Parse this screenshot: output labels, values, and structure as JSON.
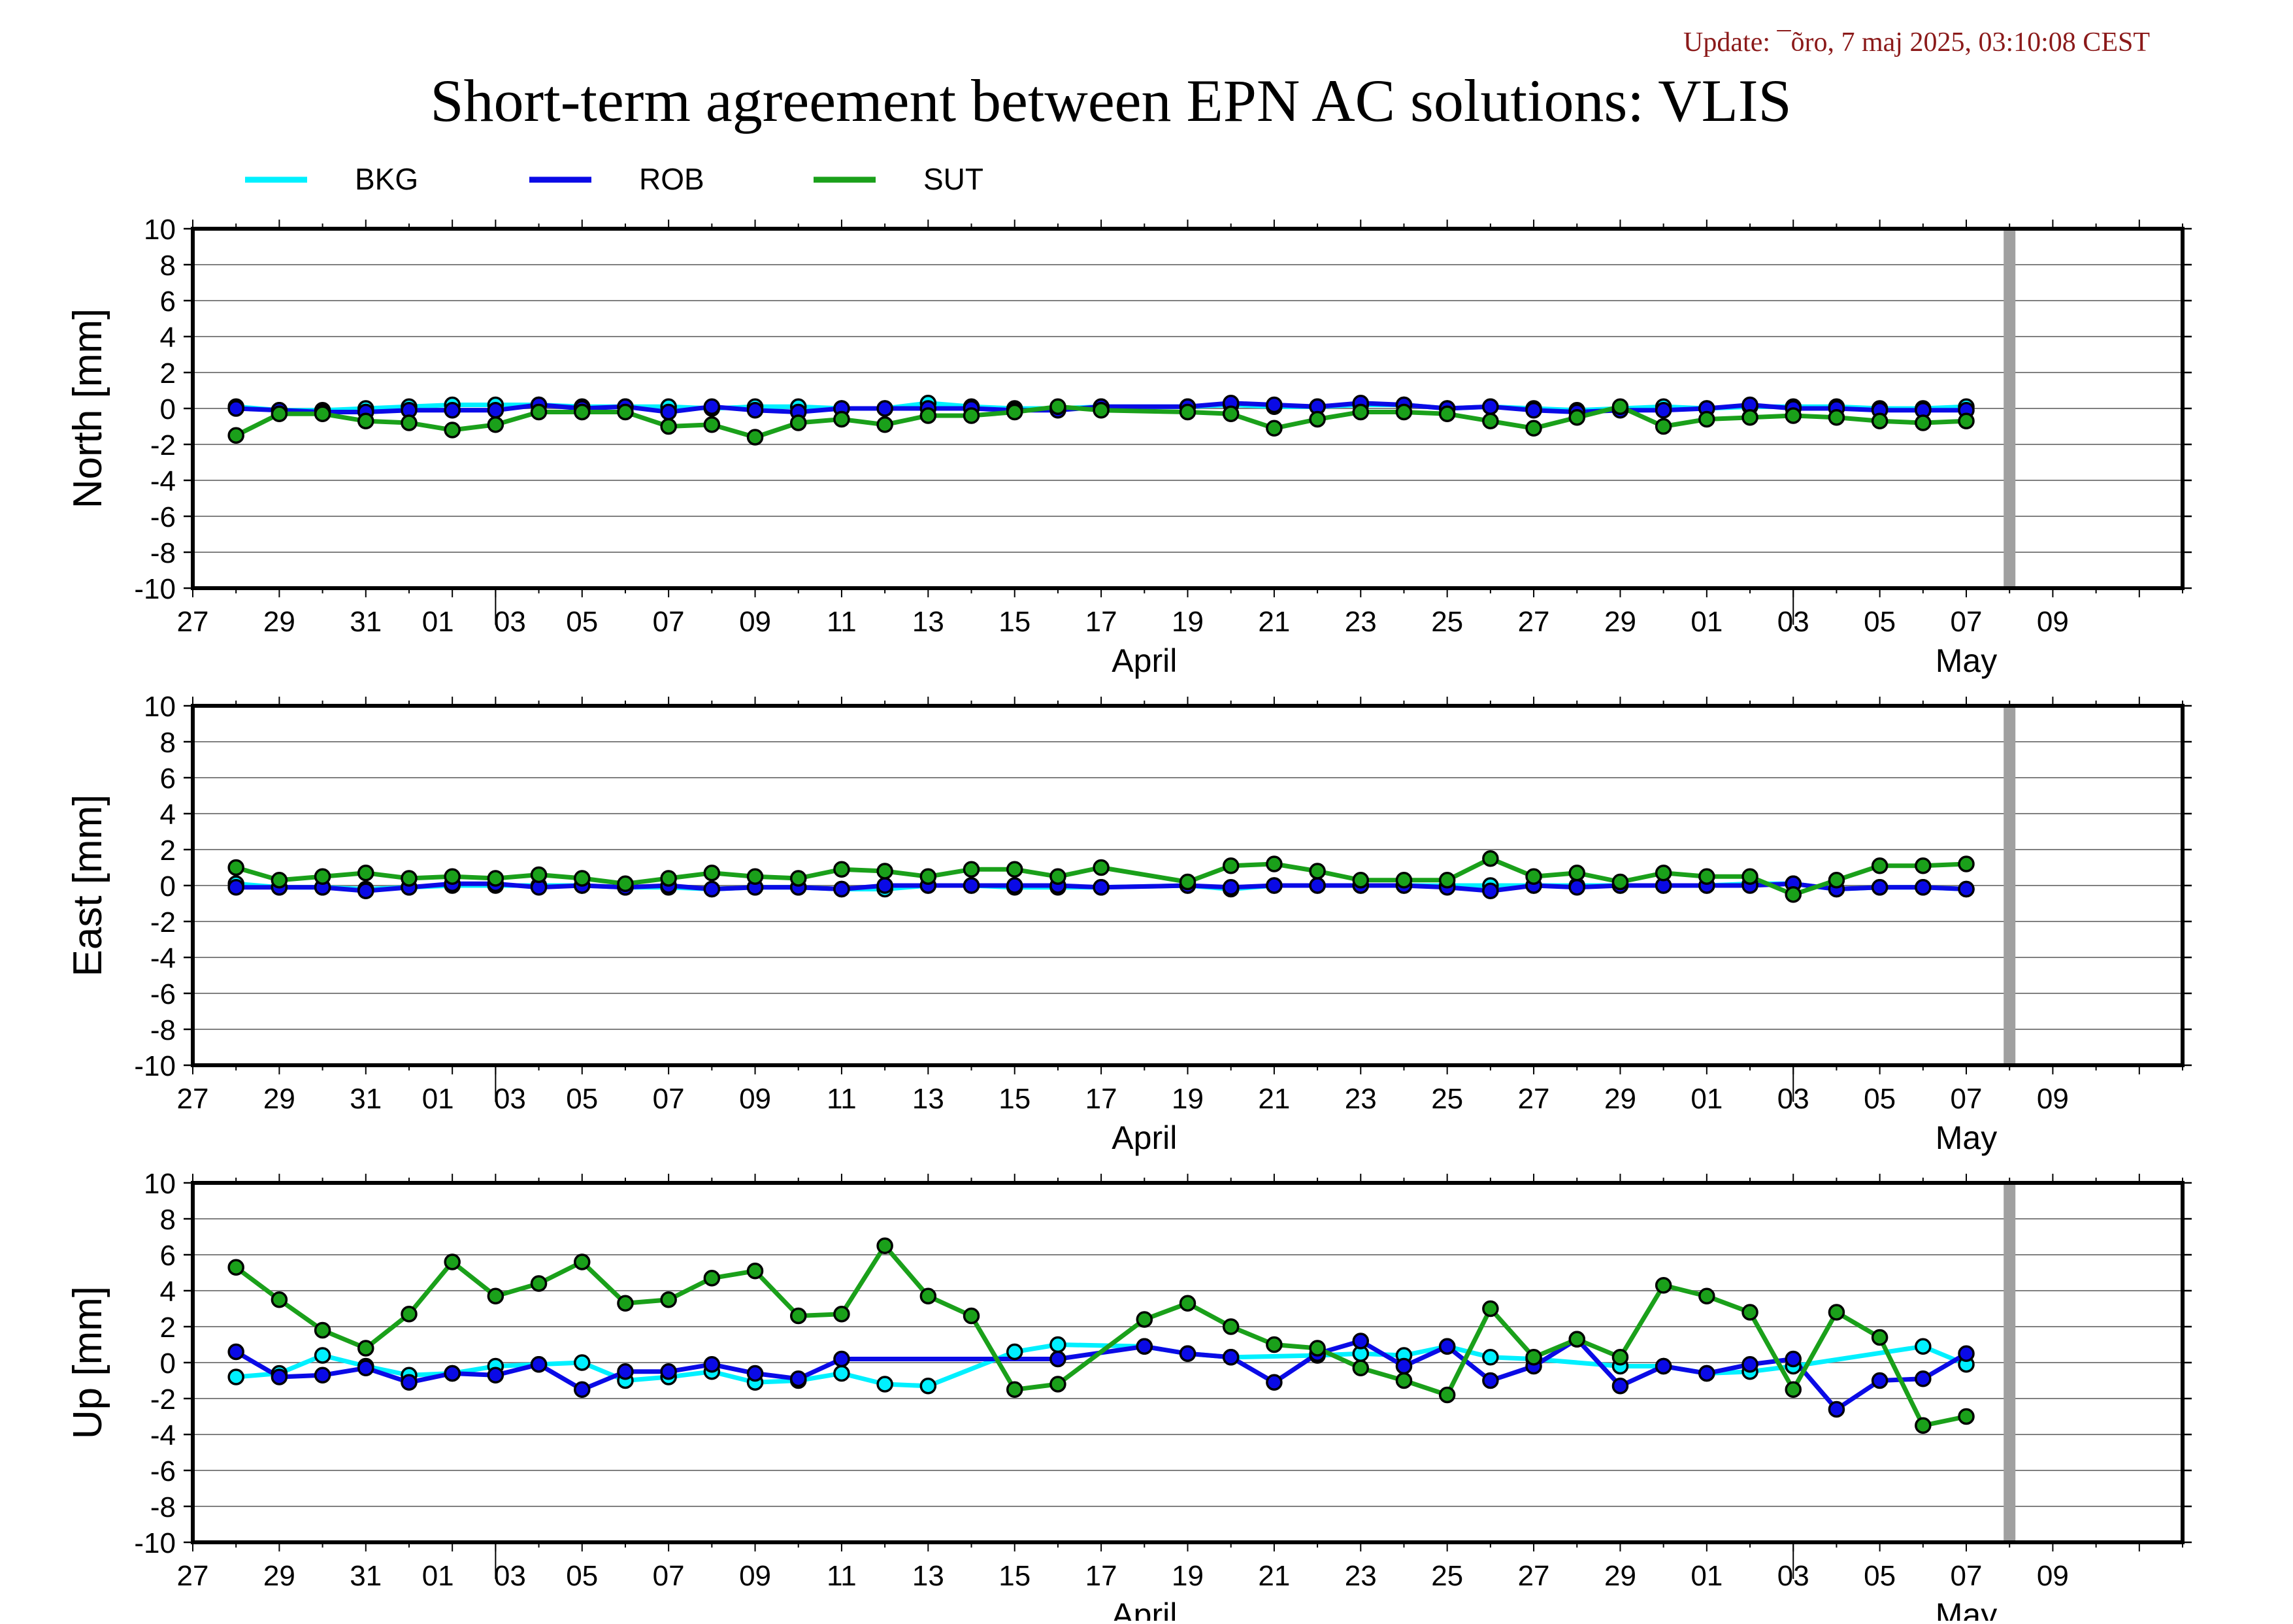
{
  "update_text": "Update: ¯õro, 7 maj 2025, 03:10:08 CEST",
  "title": "Short-term agreement between EPN AC solutions: VLIS",
  "colors": {
    "update": "#8b1a1a",
    "grid": "#808080",
    "today_marker": "#a0a0a0",
    "marker_edge": "#000000"
  },
  "legend": [
    {
      "name": "BKG",
      "color": "#00f0ff"
    },
    {
      "name": "ROB",
      "color": "#0a0ae6"
    },
    {
      "name": "SUT",
      "color": "#1aa01a"
    }
  ],
  "x_axis": {
    "tick_labels": [
      "27",
      "29",
      "31",
      "01",
      "03",
      "05",
      "07",
      "09",
      "11",
      "13",
      "15",
      "17",
      "19",
      "21",
      "23",
      "25",
      "27",
      "29",
      "01",
      "03",
      "05",
      "07",
      "09"
    ],
    "month_labels": [
      "April",
      "May"
    ]
  },
  "chart_data": [
    {
      "type": "line",
      "ylabel": "North [mm]",
      "ylim": [
        -10,
        10
      ],
      "yticks": [
        10,
        8,
        6,
        4,
        2,
        0,
        -2,
        -4,
        -6,
        -8,
        -10
      ],
      "xlim": [
        "2025-03-25",
        "2025-05-10"
      ],
      "x_start": "2025-03-26",
      "today_marker": "2025-05-06",
      "grid": true,
      "series": [
        {
          "name": "BKG",
          "values": [
            0.1,
            -0.1,
            -0.1,
            0.0,
            0.1,
            0.2,
            0.2,
            0.2,
            0.1,
            0.1,
            0.1,
            0.0,
            0.1,
            0.1,
            0.0,
            0.0,
            0.3,
            0.1,
            0.0,
            0.0,
            0.1,
            null,
            0.1,
            0.2,
            0.1,
            0.1,
            0.2,
            0.2,
            0.0,
            0.1,
            0.0,
            -0.1,
            0.0,
            0.1,
            0.0,
            0.1,
            0.1,
            0.1,
            0.0,
            0.0,
            0.1
          ]
        },
        {
          "name": "ROB",
          "values": [
            0.0,
            -0.1,
            -0.2,
            -0.2,
            -0.1,
            -0.1,
            -0.1,
            0.2,
            0.0,
            0.1,
            -0.2,
            0.1,
            -0.1,
            -0.2,
            0.0,
            0.0,
            0.0,
            0.0,
            -0.1,
            -0.1,
            0.1,
            null,
            0.1,
            0.3,
            0.2,
            0.1,
            0.3,
            0.2,
            0.0,
            0.1,
            -0.1,
            -0.2,
            -0.1,
            -0.1,
            0.0,
            0.2,
            0.0,
            0.0,
            -0.1,
            -0.1,
            -0.1
          ]
        },
        {
          "name": "SUT",
          "values": [
            -1.5,
            -0.3,
            -0.3,
            -0.7,
            -0.8,
            -1.2,
            -0.9,
            -0.2,
            -0.2,
            -0.2,
            -1.0,
            -0.9,
            -1.6,
            -0.8,
            -0.6,
            -0.9,
            -0.4,
            -0.4,
            -0.2,
            0.1,
            -0.1,
            null,
            -0.2,
            -0.3,
            -1.1,
            -0.6,
            -0.2,
            -0.2,
            -0.3,
            -0.7,
            -1.1,
            -0.5,
            0.1,
            -1.0,
            -0.6,
            -0.5,
            -0.4,
            -0.5,
            -0.7,
            -0.8,
            -0.7
          ]
        }
      ]
    },
    {
      "type": "line",
      "ylabel": "East [mm]",
      "ylim": [
        -10,
        10
      ],
      "yticks": [
        10,
        8,
        6,
        4,
        2,
        0,
        -2,
        -4,
        -6,
        -8,
        -10
      ],
      "xlim": [
        "2025-03-25",
        "2025-05-10"
      ],
      "x_start": "2025-03-26",
      "today_marker": "2025-05-06",
      "grid": true,
      "series": [
        {
          "name": "BKG",
          "values": [
            0.1,
            -0.1,
            -0.1,
            -0.2,
            -0.1,
            0.0,
            0.0,
            0.0,
            0.0,
            -0.1,
            -0.1,
            -0.2,
            -0.1,
            -0.1,
            -0.2,
            -0.2,
            0.0,
            0.0,
            -0.1,
            -0.1,
            -0.1,
            null,
            0.0,
            -0.2,
            0.0,
            0.0,
            0.0,
            0.0,
            0.0,
            0.0,
            0.0,
            0.0,
            0.0,
            0.0,
            0.0,
            0.1,
            0.1,
            -0.2,
            -0.1,
            -0.1,
            -0.2
          ]
        },
        {
          "name": "ROB",
          "values": [
            -0.1,
            -0.1,
            -0.1,
            -0.3,
            -0.1,
            0.1,
            0.1,
            -0.1,
            0.0,
            -0.1,
            0.0,
            -0.2,
            -0.1,
            -0.1,
            -0.2,
            0.0,
            0.0,
            0.0,
            0.0,
            0.0,
            -0.1,
            null,
            0.0,
            -0.1,
            0.0,
            0.0,
            0.0,
            0.0,
            -0.1,
            -0.3,
            0.0,
            -0.1,
            0.0,
            0.0,
            0.0,
            0.0,
            0.1,
            -0.2,
            -0.1,
            -0.1,
            -0.2
          ]
        },
        {
          "name": "SUT",
          "values": [
            1.0,
            0.3,
            0.5,
            0.7,
            0.4,
            0.5,
            0.4,
            0.6,
            0.4,
            0.1,
            0.4,
            0.7,
            0.5,
            0.4,
            0.9,
            0.8,
            0.5,
            0.9,
            0.9,
            0.5,
            1.0,
            null,
            0.2,
            1.1,
            1.2,
            0.8,
            0.3,
            0.3,
            0.3,
            1.5,
            0.5,
            0.7,
            0.2,
            0.7,
            0.5,
            0.5,
            -0.5,
            0.3,
            1.1,
            1.1,
            1.2
          ]
        }
      ]
    },
    {
      "type": "line",
      "ylabel": "Up [mm]",
      "ylim": [
        -10,
        10
      ],
      "yticks": [
        10,
        8,
        6,
        4,
        2,
        0,
        -2,
        -4,
        -6,
        -8,
        -10
      ],
      "xlim": [
        "2025-03-25",
        "2025-05-10"
      ],
      "x_start": "2025-03-26",
      "today_marker": "2025-05-06",
      "grid": true,
      "series": [
        {
          "name": "BKG",
          "values": [
            -0.8,
            -0.6,
            0.4,
            -0.2,
            -0.7,
            -0.6,
            -0.2,
            -0.1,
            0.0,
            -1.0,
            -0.8,
            -0.5,
            -1.1,
            -1.0,
            -0.6,
            -1.2,
            -1.3,
            null,
            0.6,
            1.0,
            null,
            0.9,
            0.5,
            0.3,
            null,
            0.4,
            0.5,
            0.4,
            0.9,
            0.3,
            0.2,
            null,
            -0.2,
            -0.2,
            -0.6,
            -0.5,
            -0.2,
            null,
            null,
            0.9,
            -0.1
          ]
        },
        {
          "name": "ROB",
          "values": [
            0.6,
            -0.8,
            -0.7,
            -0.3,
            -1.1,
            -0.6,
            -0.7,
            -0.1,
            -1.5,
            -0.5,
            -0.5,
            -0.1,
            -0.6,
            -0.9,
            0.2,
            null,
            null,
            null,
            null,
            0.2,
            null,
            0.9,
            0.5,
            0.3,
            -1.1,
            0.5,
            1.2,
            -0.2,
            0.9,
            -1.0,
            -0.2,
            1.3,
            -1.3,
            -0.2,
            -0.6,
            -0.1,
            0.2,
            -2.6,
            -1.0,
            -0.9,
            0.5
          ]
        },
        {
          "name": "SUT",
          "values": [
            5.3,
            3.5,
            1.8,
            0.8,
            2.7,
            5.6,
            3.7,
            4.4,
            5.6,
            3.3,
            3.5,
            4.7,
            5.1,
            2.6,
            2.7,
            6.5,
            3.7,
            2.6,
            -1.5,
            -1.2,
            null,
            2.4,
            3.3,
            2.0,
            1.0,
            0.8,
            -0.3,
            -1.0,
            -1.8,
            3.0,
            0.3,
            1.3,
            0.3,
            4.3,
            3.7,
            2.8,
            -1.5,
            2.8,
            1.4,
            -3.5,
            -3.0
          ]
        }
      ]
    }
  ]
}
